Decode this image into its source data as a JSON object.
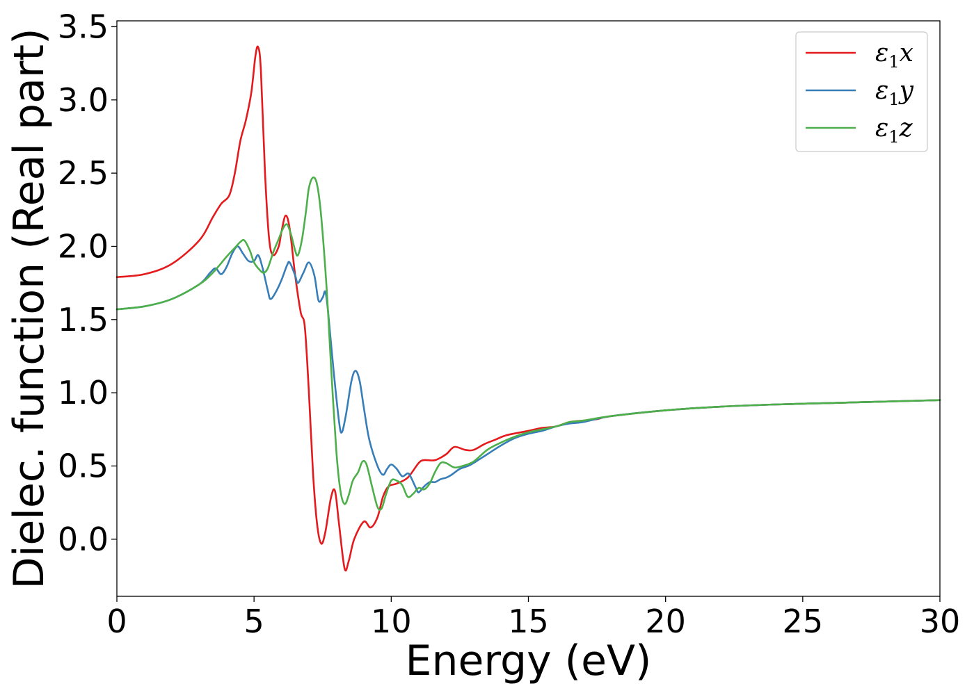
{
  "chart_data": {
    "type": "line",
    "xlabel": "Energy (eV)",
    "ylabel": "Dielec. function (Real part)",
    "xlim": [
      0,
      30
    ],
    "ylim": [
      -0.39,
      3.54
    ],
    "xticks": [
      0,
      5,
      10,
      15,
      20,
      25,
      30
    ],
    "yticks": [
      0.0,
      0.5,
      1.0,
      1.5,
      2.0,
      2.5,
      3.0,
      3.5
    ],
    "xtick_labels": [
      "0",
      "5",
      "10",
      "15",
      "20",
      "25",
      "30"
    ],
    "ytick_labels": [
      "0.0",
      "0.5",
      "1.0",
      "1.5",
      "2.0",
      "2.5",
      "3.0",
      "3.5"
    ],
    "grid": false,
    "legend_position": "top-right",
    "series": [
      {
        "name": "ε₁x",
        "legend_main": "ε",
        "legend_sub": "1",
        "legend_suffix": "x",
        "color": "#e41a1c",
        "points": [
          [
            0,
            1.79
          ],
          [
            1,
            1.81
          ],
          [
            2,
            1.88
          ],
          [
            3,
            2.04
          ],
          [
            3.5,
            2.2
          ],
          [
            3.8,
            2.29
          ],
          [
            4.1,
            2.35
          ],
          [
            4.3,
            2.5
          ],
          [
            4.5,
            2.72
          ],
          [
            4.7,
            2.86
          ],
          [
            4.9,
            3.05
          ],
          [
            5.05,
            3.3
          ],
          [
            5.15,
            3.36
          ],
          [
            5.25,
            3.2
          ],
          [
            5.4,
            2.5
          ],
          [
            5.55,
            2.05
          ],
          [
            5.7,
            1.94
          ],
          [
            5.9,
            2.0
          ],
          [
            6.0,
            2.1
          ],
          [
            6.15,
            2.21
          ],
          [
            6.3,
            2.12
          ],
          [
            6.5,
            1.8
          ],
          [
            6.7,
            1.55
          ],
          [
            6.85,
            1.45
          ],
          [
            7.0,
            1.0
          ],
          [
            7.15,
            0.45
          ],
          [
            7.3,
            0.1
          ],
          [
            7.45,
            -0.03
          ],
          [
            7.6,
            0.05
          ],
          [
            7.8,
            0.28
          ],
          [
            7.95,
            0.33
          ],
          [
            8.1,
            0.1
          ],
          [
            8.3,
            -0.2
          ],
          [
            8.45,
            -0.15
          ],
          [
            8.65,
            0.0
          ],
          [
            9.0,
            0.12
          ],
          [
            9.25,
            0.08
          ],
          [
            9.5,
            0.15
          ],
          [
            9.7,
            0.29
          ],
          [
            9.9,
            0.36
          ],
          [
            10.2,
            0.38
          ],
          [
            10.6,
            0.42
          ],
          [
            11.0,
            0.52
          ],
          [
            11.2,
            0.54
          ],
          [
            11.6,
            0.54
          ],
          [
            12.0,
            0.58
          ],
          [
            12.3,
            0.63
          ],
          [
            12.7,
            0.61
          ],
          [
            13.0,
            0.61
          ],
          [
            13.4,
            0.65
          ],
          [
            13.8,
            0.68
          ],
          [
            14.2,
            0.71
          ],
          [
            15.0,
            0.74
          ],
          [
            15.5,
            0.76
          ],
          [
            16.0,
            0.77
          ],
          [
            16.5,
            0.8
          ],
          [
            17.0,
            0.81
          ],
          [
            17.5,
            0.82
          ],
          [
            18.0,
            0.84
          ],
          [
            20.0,
            0.88
          ],
          [
            22.0,
            0.905
          ],
          [
            24.0,
            0.92
          ],
          [
            26.0,
            0.93
          ],
          [
            28.0,
            0.94
          ],
          [
            30.0,
            0.95
          ]
        ]
      },
      {
        "name": "ε₁y",
        "legend_main": "ε",
        "legend_sub": "1",
        "legend_suffix": "y",
        "color": "#377eb8",
        "points": [
          [
            0,
            1.57
          ],
          [
            1,
            1.59
          ],
          [
            2,
            1.64
          ],
          [
            3,
            1.74
          ],
          [
            3.4,
            1.82
          ],
          [
            3.6,
            1.85
          ],
          [
            3.8,
            1.81
          ],
          [
            4.0,
            1.86
          ],
          [
            4.2,
            1.95
          ],
          [
            4.4,
            2.0
          ],
          [
            4.6,
            1.95
          ],
          [
            4.8,
            1.9
          ],
          [
            5.0,
            1.9
          ],
          [
            5.15,
            1.94
          ],
          [
            5.3,
            1.86
          ],
          [
            5.5,
            1.7
          ],
          [
            5.6,
            1.64
          ],
          [
            5.8,
            1.69
          ],
          [
            6.0,
            1.77
          ],
          [
            6.2,
            1.87
          ],
          [
            6.3,
            1.89
          ],
          [
            6.5,
            1.8
          ],
          [
            6.6,
            1.75
          ],
          [
            6.8,
            1.82
          ],
          [
            7.0,
            1.89
          ],
          [
            7.2,
            1.8
          ],
          [
            7.35,
            1.63
          ],
          [
            7.5,
            1.65
          ],
          [
            7.6,
            1.69
          ],
          [
            7.7,
            1.55
          ],
          [
            7.9,
            1.15
          ],
          [
            8.1,
            0.8
          ],
          [
            8.2,
            0.73
          ],
          [
            8.35,
            0.85
          ],
          [
            8.55,
            1.08
          ],
          [
            8.7,
            1.15
          ],
          [
            8.85,
            1.08
          ],
          [
            9.0,
            0.9
          ],
          [
            9.2,
            0.68
          ],
          [
            9.5,
            0.5
          ],
          [
            9.7,
            0.44
          ],
          [
            9.85,
            0.48
          ],
          [
            10.0,
            0.51
          ],
          [
            10.2,
            0.48
          ],
          [
            10.4,
            0.43
          ],
          [
            10.6,
            0.45
          ],
          [
            10.7,
            0.43
          ],
          [
            10.9,
            0.35
          ],
          [
            11.0,
            0.32
          ],
          [
            11.2,
            0.36
          ],
          [
            11.4,
            0.39
          ],
          [
            11.6,
            0.39
          ],
          [
            11.8,
            0.41
          ],
          [
            12.0,
            0.42
          ],
          [
            12.2,
            0.44
          ],
          [
            12.5,
            0.48
          ],
          [
            12.8,
            0.5
          ],
          [
            13.0,
            0.52
          ],
          [
            13.5,
            0.58
          ],
          [
            14.0,
            0.64
          ],
          [
            14.5,
            0.69
          ],
          [
            15.0,
            0.72
          ],
          [
            15.5,
            0.74
          ],
          [
            16.0,
            0.77
          ],
          [
            16.5,
            0.79
          ],
          [
            17.0,
            0.8
          ],
          [
            18.0,
            0.84
          ],
          [
            20.0,
            0.88
          ],
          [
            22.0,
            0.905
          ],
          [
            24.0,
            0.92
          ],
          [
            26.0,
            0.93
          ],
          [
            28.0,
            0.94
          ],
          [
            30.0,
            0.95
          ]
        ]
      },
      {
        "name": "ε₁z",
        "legend_main": "ε",
        "legend_sub": "1",
        "legend_suffix": "z",
        "color": "#4daf4a",
        "points": [
          [
            0,
            1.57
          ],
          [
            1,
            1.59
          ],
          [
            2,
            1.64
          ],
          [
            3,
            1.74
          ],
          [
            3.5,
            1.82
          ],
          [
            4.0,
            1.93
          ],
          [
            4.3,
            1.99
          ],
          [
            4.5,
            2.03
          ],
          [
            4.65,
            2.04
          ],
          [
            4.85,
            1.97
          ],
          [
            5.0,
            1.89
          ],
          [
            5.2,
            1.84
          ],
          [
            5.35,
            1.82
          ],
          [
            5.5,
            1.85
          ],
          [
            5.7,
            1.96
          ],
          [
            5.9,
            2.05
          ],
          [
            6.05,
            2.12
          ],
          [
            6.2,
            2.15
          ],
          [
            6.35,
            2.08
          ],
          [
            6.5,
            1.97
          ],
          [
            6.6,
            1.94
          ],
          [
            6.75,
            2.05
          ],
          [
            6.9,
            2.25
          ],
          [
            7.0,
            2.4
          ],
          [
            7.15,
            2.47
          ],
          [
            7.3,
            2.42
          ],
          [
            7.45,
            2.2
          ],
          [
            7.65,
            1.7
          ],
          [
            7.8,
            1.2
          ],
          [
            8.0,
            0.6
          ],
          [
            8.15,
            0.33
          ],
          [
            8.3,
            0.24
          ],
          [
            8.45,
            0.3
          ],
          [
            8.6,
            0.4
          ],
          [
            8.8,
            0.46
          ],
          [
            8.95,
            0.53
          ],
          [
            9.1,
            0.51
          ],
          [
            9.3,
            0.36
          ],
          [
            9.5,
            0.22
          ],
          [
            9.65,
            0.21
          ],
          [
            9.8,
            0.3
          ],
          [
            10.0,
            0.4
          ],
          [
            10.2,
            0.4
          ],
          [
            10.4,
            0.37
          ],
          [
            10.6,
            0.29
          ],
          [
            10.8,
            0.31
          ],
          [
            11.0,
            0.35
          ],
          [
            11.2,
            0.34
          ],
          [
            11.4,
            0.38
          ],
          [
            11.6,
            0.46
          ],
          [
            11.8,
            0.52
          ],
          [
            12.0,
            0.52
          ],
          [
            12.3,
            0.49
          ],
          [
            12.6,
            0.5
          ],
          [
            13.0,
            0.53
          ],
          [
            13.5,
            0.61
          ],
          [
            14.0,
            0.66
          ],
          [
            14.5,
            0.7
          ],
          [
            15.0,
            0.73
          ],
          [
            16.0,
            0.77
          ],
          [
            16.5,
            0.8
          ],
          [
            17.0,
            0.81
          ],
          [
            18.0,
            0.84
          ],
          [
            20.0,
            0.88
          ],
          [
            22.0,
            0.905
          ],
          [
            24.0,
            0.92
          ],
          [
            26.0,
            0.93
          ],
          [
            28.0,
            0.94
          ],
          [
            30.0,
            0.95
          ]
        ]
      }
    ]
  }
}
